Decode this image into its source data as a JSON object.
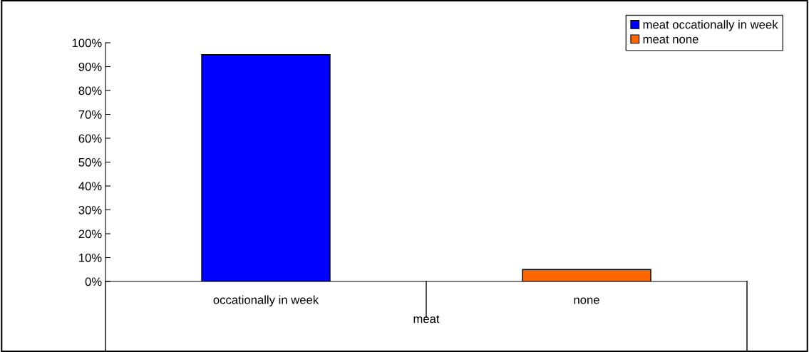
{
  "chart_data": {
    "type": "bar",
    "categories": [
      "occationally in week",
      "none"
    ],
    "xlabel": "meat",
    "series": [
      {
        "name": "meat occationally in week",
        "color": "#0000ff",
        "values": [
          95,
          null
        ]
      },
      {
        "name": "meat none",
        "color": "#ff6600",
        "values": [
          null,
          5
        ]
      }
    ],
    "ylim": [
      0,
      100
    ],
    "yticks": [
      {
        "value": 0,
        "label": "0%"
      },
      {
        "value": 10,
        "label": "10%"
      },
      {
        "value": 20,
        "label": "20%"
      },
      {
        "value": 30,
        "label": "30%"
      },
      {
        "value": 40,
        "label": "40%"
      },
      {
        "value": 50,
        "label": "50%"
      },
      {
        "value": 60,
        "label": "60%"
      },
      {
        "value": 70,
        "label": "70%"
      },
      {
        "value": 80,
        "label": "80%"
      },
      {
        "value": 90,
        "label": "90%"
      },
      {
        "value": 100,
        "label": "100%"
      }
    ],
    "grid": false,
    "legend": "top right"
  }
}
